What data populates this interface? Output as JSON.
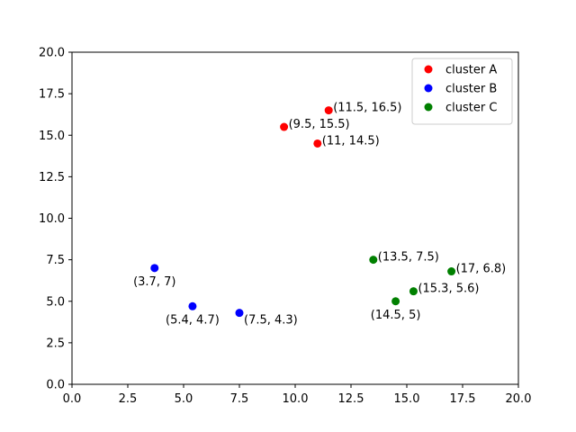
{
  "chart_data": {
    "type": "scatter",
    "title": "",
    "xlabel": "",
    "ylabel": "",
    "xlim": [
      0,
      20
    ],
    "ylim": [
      0,
      20
    ],
    "xticks": [
      "0.0",
      "2.5",
      "5.0",
      "7.5",
      "10.0",
      "12.5",
      "15.0",
      "17.5",
      "20.0"
    ],
    "yticks": [
      "0.0",
      "2.5",
      "5.0",
      "7.5",
      "10.0",
      "12.5",
      "15.0",
      "17.5",
      "20.0"
    ],
    "grid": false,
    "legend_position": "top-right",
    "series": [
      {
        "name": "cluster A",
        "color": "#ff0000",
        "points": [
          {
            "x": 9.5,
            "y": 15.5,
            "label": "(9.5, 15.5)",
            "label_side": "right"
          },
          {
            "x": 11,
            "y": 14.5,
            "label": "(11, 14.5)",
            "label_side": "right"
          },
          {
            "x": 11.5,
            "y": 16.5,
            "label": "(11.5, 16.5)",
            "label_side": "right"
          }
        ]
      },
      {
        "name": "cluster B",
        "color": "#0000ff",
        "points": [
          {
            "x": 3.7,
            "y": 7,
            "label": "(3.7, 7)",
            "label_side": "below"
          },
          {
            "x": 5.4,
            "y": 4.7,
            "label": "(5.4, 4.7)",
            "label_side": "below"
          },
          {
            "x": 7.5,
            "y": 4.3,
            "label": "(7.5, 4.3)",
            "label_side": "below-right"
          }
        ]
      },
      {
        "name": "cluster C",
        "color": "#008000",
        "points": [
          {
            "x": 13.5,
            "y": 7.5,
            "label": "(13.5, 7.5)",
            "label_side": "right"
          },
          {
            "x": 14.5,
            "y": 5,
            "label": "(14.5, 5)",
            "label_side": "below"
          },
          {
            "x": 15.3,
            "y": 5.6,
            "label": "(15.3, 5.6)",
            "label_side": "right"
          },
          {
            "x": 17,
            "y": 6.8,
            "label": "(17, 6.8)",
            "label_side": "right"
          }
        ]
      }
    ]
  }
}
